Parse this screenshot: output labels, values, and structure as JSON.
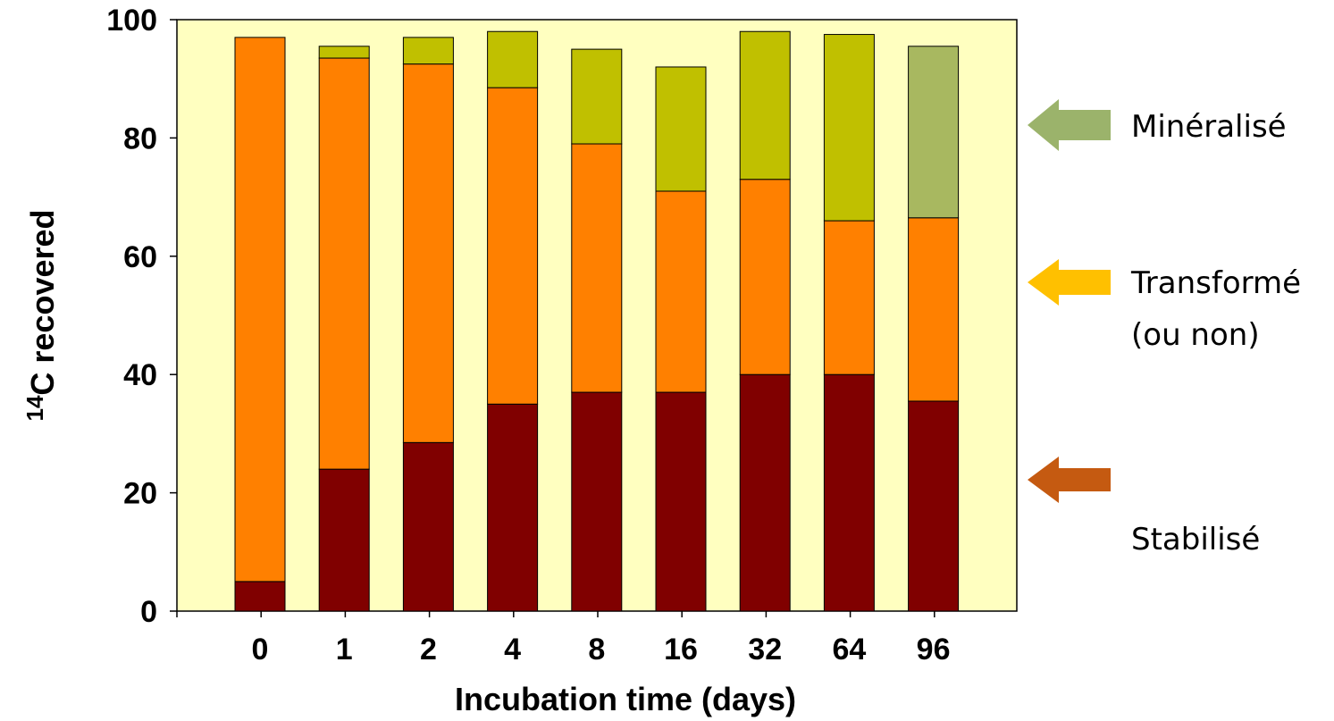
{
  "chart_data": {
    "type": "bar",
    "stacked": true,
    "categories": [
      "0",
      "1",
      "2",
      "4",
      "8",
      "16",
      "32",
      "64",
      "96"
    ],
    "series": [
      {
        "key": "stable",
        "values": [
          5,
          24,
          28.5,
          35,
          37,
          37,
          40,
          40,
          35.5
        ]
      },
      {
        "key": "transformed",
        "values": [
          92,
          69.5,
          64,
          53.5,
          42,
          34,
          33,
          26,
          31
        ]
      },
      {
        "key": "mineralized",
        "values": [
          0,
          2,
          4.5,
          9.5,
          16,
          21,
          25,
          31.5,
          29
        ]
      }
    ],
    "xlabel": "Incubation time (days)",
    "ylabel_prefix": "14",
    "ylabel_main": "C recovered",
    "ylim": [
      0,
      100
    ],
    "yticks": [
      0,
      20,
      40,
      60,
      80,
      100
    ],
    "grid": false,
    "plot_background": "#FFFFC0",
    "colors": {
      "stable": "#800000",
      "transformed": "#FF8000",
      "mineralized": "#C0C000",
      "mineralized_last": "#A8B860"
    },
    "annotations": [
      {
        "label": "Minéralisé",
        "arrow_color": "#9BB36B"
      },
      {
        "label": "Transformé",
        "label2": "(ou non)",
        "arrow_color": "#FFC000"
      },
      {
        "label": "Stabilisé",
        "arrow_color": "#C55A11"
      }
    ]
  }
}
